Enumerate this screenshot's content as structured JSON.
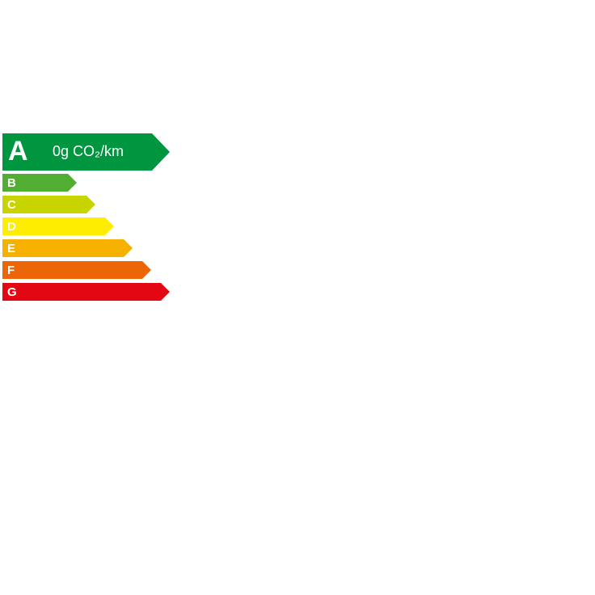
{
  "classes": [
    "A",
    "B",
    "C",
    "D",
    "E",
    "F",
    "G"
  ],
  "emission": "0g CO₂/km"
}
